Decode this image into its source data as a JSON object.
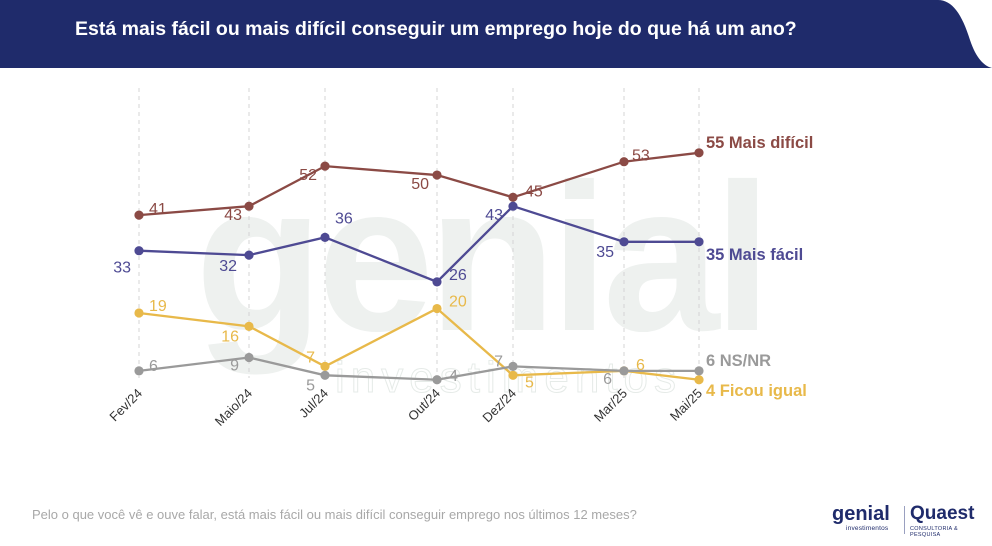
{
  "header": {
    "title": "Está mais fácil ou mais difícil conseguir um emprego hoje do que há um ano?",
    "band_color": "#1f2b6b"
  },
  "footnote": "Pelo o que você vê e ouve falar, está mais fácil ou mais difícil conseguir emprego nos últimos 12 meses?",
  "logos": {
    "genial": "genial",
    "genial_sub": "investimentos",
    "quaest": "Quaest",
    "quaest_sub": "CONSULTORIA & PESQUISA"
  },
  "watermark": {
    "word": "genial",
    "sub": "investimentos"
  },
  "chart_data": {
    "type": "line",
    "categories": [
      "Fev/24",
      "Maio/24",
      "Jul/24",
      "Out/24",
      "Dez/24",
      "Mar/25",
      "Mai/25"
    ],
    "ylim": [
      0,
      60
    ],
    "grid": "vertical-dashed",
    "series": [
      {
        "name": "Mais difícil",
        "color": "#8b4a45",
        "values": [
          41,
          43,
          52,
          50,
          45,
          53,
          55
        ],
        "end_label": "55 Mais difícil"
      },
      {
        "name": "Mais fácil",
        "color": "#4e4a93",
        "values": [
          33,
          32,
          36,
          26,
          43,
          35,
          35
        ],
        "end_label": "35 Mais fácil"
      },
      {
        "name": "Ficou igual",
        "color": "#e8b94a",
        "values": [
          19,
          16,
          7,
          20,
          5,
          6,
          4
        ],
        "end_label": "4 Ficou igual"
      },
      {
        "name": "NS/NR",
        "color": "#9a9a9a",
        "values": [
          6,
          9,
          5,
          4,
          7,
          6,
          6
        ],
        "end_label": "6 NS/NR"
      }
    ]
  }
}
